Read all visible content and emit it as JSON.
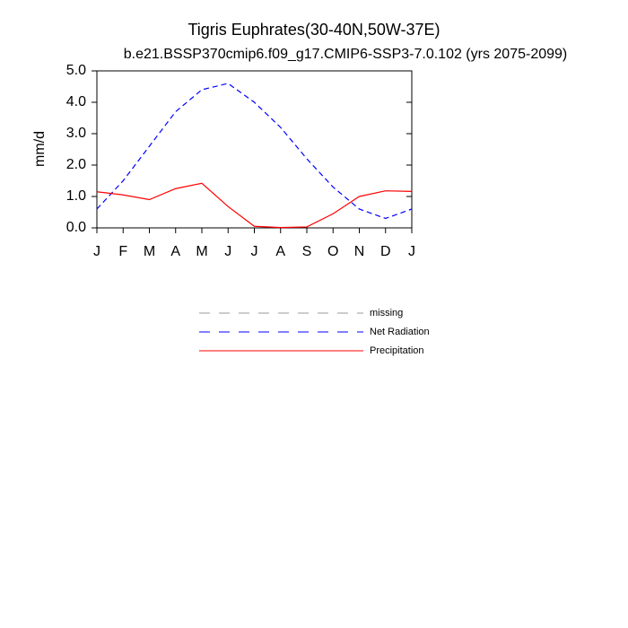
{
  "chart_data": {
    "type": "line",
    "title": "Tigris Euphrates(30-40N,50W-37E)",
    "subtitle": "b.e21.BSSP370cmip6.f09_g17.CMIP6-SSP3-7.0.102 (yrs 2075-2099)",
    "y_label": "mm/d",
    "categories": [
      "J",
      "F",
      "M",
      "A",
      "M",
      "J",
      "J",
      "A",
      "S",
      "O",
      "N",
      "D",
      "J"
    ],
    "series": [
      {
        "name": "missing",
        "color": "#999999",
        "dash": true,
        "values": [
          null,
          null,
          null,
          null,
          null,
          null,
          null,
          null,
          null,
          null,
          null,
          null,
          null
        ]
      },
      {
        "name": "Net Radiation",
        "color": "#0000ff",
        "dash": true,
        "values": [
          0.6,
          1.5,
          2.6,
          3.7,
          4.4,
          4.6,
          4.0,
          3.2,
          2.2,
          1.3,
          0.6,
          0.3,
          0.6
        ]
      },
      {
        "name": "Precipitation",
        "color": "#ff0000",
        "dash": false,
        "values": [
          1.15,
          1.05,
          0.9,
          1.25,
          1.42,
          0.68,
          0.05,
          0.01,
          0.03,
          0.45,
          1.0,
          1.18,
          1.16
        ]
      }
    ],
    "ylim": [
      0,
      5
    ],
    "yticks": [
      {
        "value": 0,
        "label": "0.0"
      },
      {
        "value": 1,
        "label": "1.0"
      },
      {
        "value": 2,
        "label": "2.0"
      },
      {
        "value": 3,
        "label": "3.0"
      },
      {
        "value": 4,
        "label": "4.0"
      },
      {
        "value": 5,
        "label": "5.0"
      }
    ],
    "grid": false
  }
}
